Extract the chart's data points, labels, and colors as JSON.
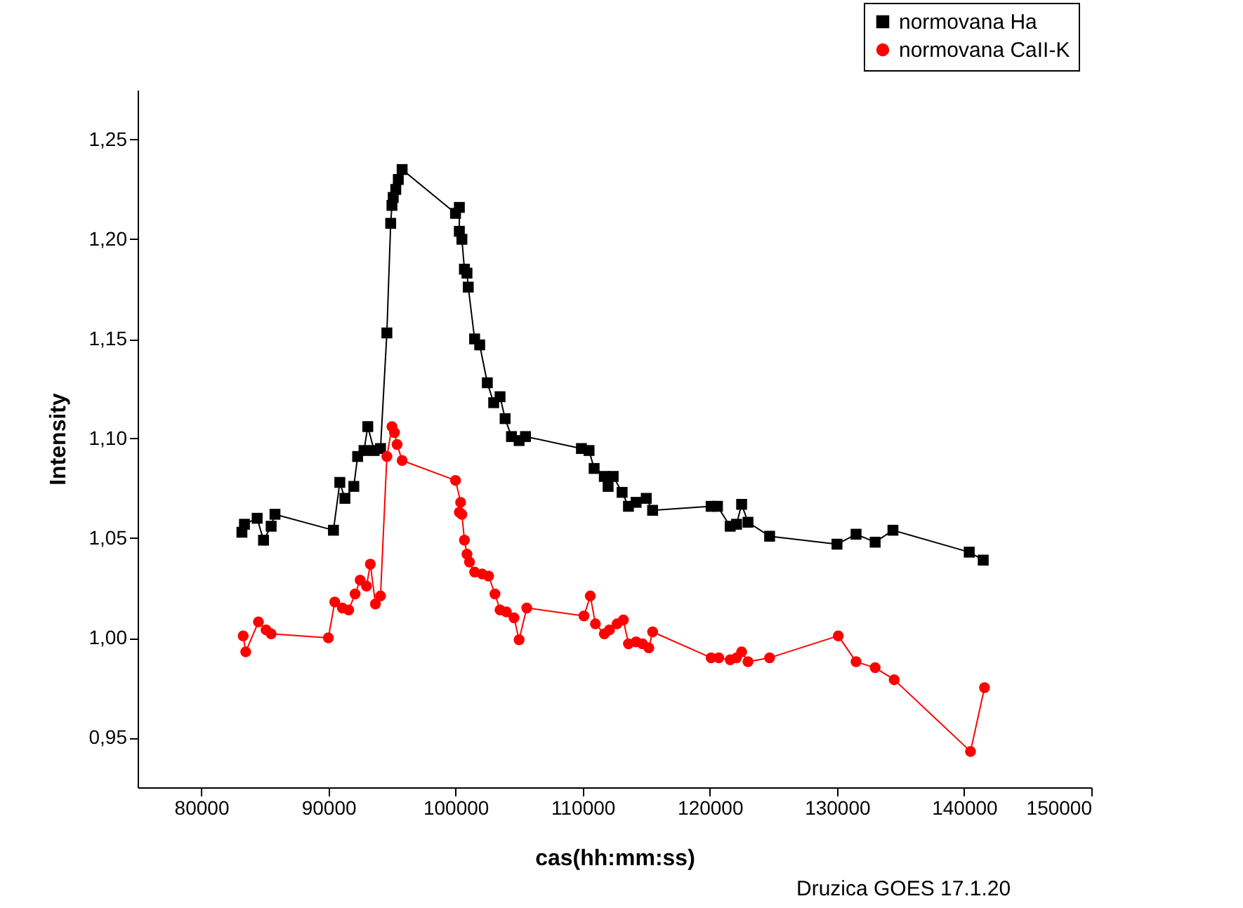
{
  "chart_data": {
    "type": "line",
    "xlabel": "cas(hh:mm:ss)",
    "ylabel": "Intensity",
    "xlim": [
      75000,
      150000
    ],
    "xticks": [
      80000,
      90000,
      100000,
      110000,
      120000,
      130000,
      140000,
      150000
    ],
    "ylim": [
      0.925,
      1.275
    ],
    "yticks": [
      {
        "value": 0.95,
        "label": "0,95"
      },
      {
        "value": 1.0,
        "label": "1,00"
      },
      {
        "value": 1.05,
        "label": "1,05"
      },
      {
        "value": 1.1,
        "label": "1,10"
      },
      {
        "value": 1.15,
        "label": "1,15"
      },
      {
        "value": 1.2,
        "label": "1,20"
      },
      {
        "value": 1.25,
        "label": "1,25"
      }
    ],
    "grid": false,
    "legend": "top right",
    "annotations": [
      "Druzica GOES 17.1.20"
    ],
    "series": [
      {
        "name": "normovana Ha",
        "color": "#000000",
        "marker": "square",
        "x": [
          83200,
          83400,
          84400,
          84900,
          85500,
          85800,
          90400,
          90900,
          91300,
          92000,
          92300,
          92800,
          93100,
          93600,
          94100,
          94600,
          94900,
          95000,
          95100,
          95300,
          95500,
          95800,
          100000,
          100300,
          100300,
          100500,
          100700,
          100900,
          101000,
          101500,
          101900,
          102500,
          103000,
          103500,
          103900,
          104400,
          105000,
          105500,
          109900,
          110500,
          110900,
          111700,
          112000,
          112400,
          113100,
          113600,
          114200,
          115000,
          115500,
          120100,
          120600,
          121600,
          122100,
          122500,
          123000,
          124700,
          130000,
          131500,
          133000,
          134400,
          140400,
          141500
        ],
        "values": [
          1.053,
          1.057,
          1.06,
          1.049,
          1.056,
          1.062,
          1.054,
          1.078,
          1.07,
          1.076,
          1.091,
          1.094,
          1.106,
          1.094,
          1.095,
          1.153,
          1.208,
          1.217,
          1.221,
          1.225,
          1.23,
          1.235,
          1.213,
          1.216,
          1.204,
          1.2,
          1.185,
          1.183,
          1.176,
          1.15,
          1.147,
          1.128,
          1.118,
          1.121,
          1.11,
          1.101,
          1.099,
          1.101,
          1.095,
          1.094,
          1.085,
          1.081,
          1.076,
          1.081,
          1.073,
          1.066,
          1.068,
          1.07,
          1.064,
          1.066,
          1.066,
          1.056,
          1.057,
          1.067,
          1.058,
          1.051,
          1.047,
          1.052,
          1.048,
          1.054,
          1.043,
          1.039
        ]
      },
      {
        "name": "normovana CaII-K",
        "color": "#ff0000",
        "marker": "circle",
        "x": [
          83300,
          83500,
          84500,
          85100,
          85500,
          90000,
          90500,
          91100,
          91600,
          92100,
          92500,
          93000,
          93300,
          93700,
          94100,
          94600,
          95000,
          95200,
          95400,
          95800,
          100000,
          100400,
          100300,
          100500,
          100700,
          100900,
          101100,
          101500,
          102100,
          102600,
          103100,
          103500,
          104000,
          104600,
          105000,
          105600,
          110100,
          110600,
          111000,
          111700,
          112100,
          112700,
          113200,
          113600,
          114200,
          114700,
          115200,
          115500,
          120100,
          120700,
          121600,
          122100,
          122500,
          123000,
          124700,
          130100,
          131500,
          133000,
          134500,
          140500,
          141600
        ],
        "values": [
          1.001,
          0.993,
          1.008,
          1.004,
          1.002,
          1.0,
          1.018,
          1.015,
          1.014,
          1.022,
          1.029,
          1.026,
          1.037,
          1.017,
          1.021,
          1.091,
          1.106,
          1.103,
          1.097,
          1.089,
          1.079,
          1.068,
          1.063,
          1.062,
          1.049,
          1.042,
          1.038,
          1.033,
          1.032,
          1.031,
          1.022,
          1.014,
          1.013,
          1.01,
          0.999,
          1.015,
          1.011,
          1.021,
          1.007,
          1.002,
          1.004,
          1.007,
          1.009,
          0.997,
          0.998,
          0.997,
          0.995,
          1.003,
          0.99,
          0.99,
          0.989,
          0.99,
          0.993,
          0.988,
          0.99,
          1.001,
          0.988,
          0.985,
          0.979,
          0.943,
          0.975
        ]
      }
    ]
  }
}
